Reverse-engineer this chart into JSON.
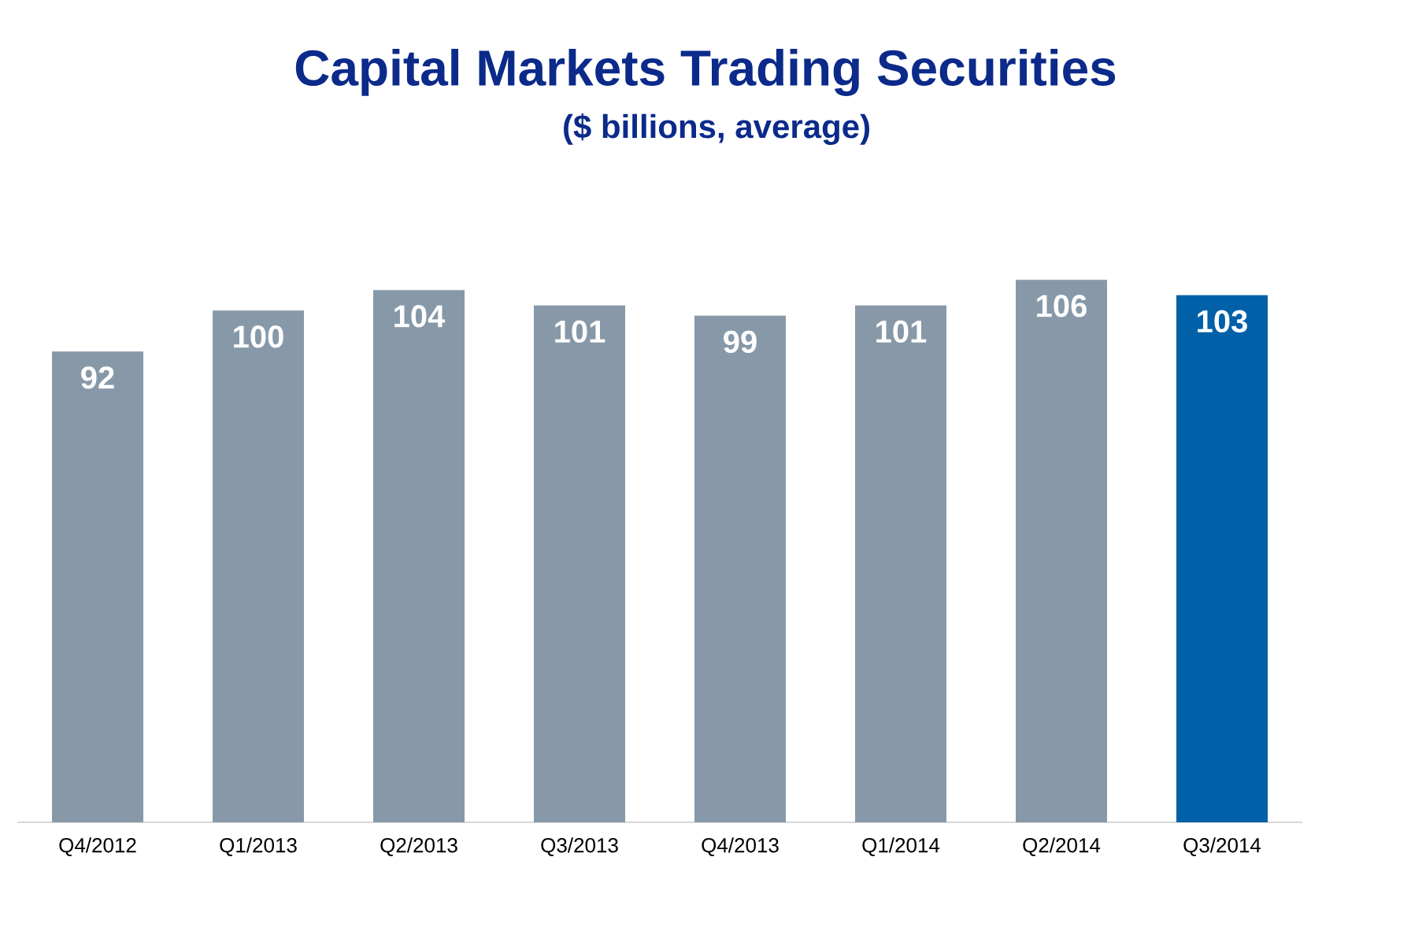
{
  "chart_data": {
    "type": "bar",
    "title": "Capital Markets Trading Securities",
    "subtitle": "($ billions, average)",
    "categories": [
      "Q4/2012",
      "Q1/2013",
      "Q2/2013",
      "Q3/2013",
      "Q4/2013",
      "Q1/2014",
      "Q2/2014",
      "Q3/2014"
    ],
    "values": [
      92,
      100,
      104,
      101,
      99,
      101,
      106,
      103
    ],
    "colors": [
      "#8799a8",
      "#8799a8",
      "#8799a8",
      "#8799a8",
      "#8799a8",
      "#8799a8",
      "#8799a8",
      "#0060a8"
    ],
    "data_labels": true
  }
}
